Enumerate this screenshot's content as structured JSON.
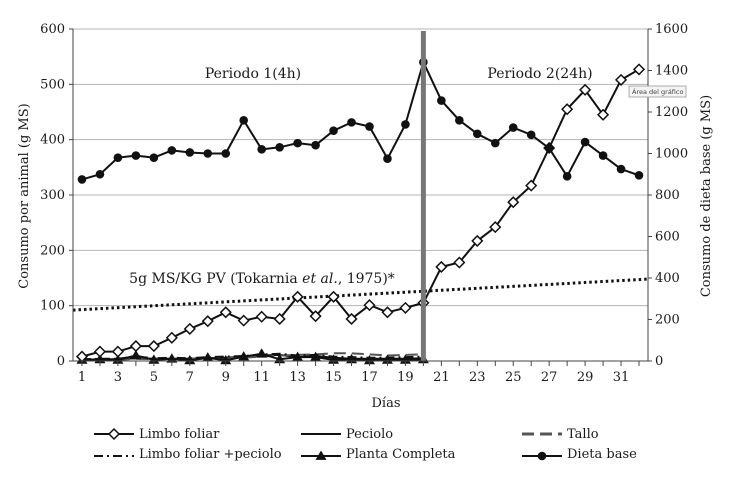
{
  "chart_data": {
    "type": "line",
    "xlabel": "Días",
    "ylabel_left": "Consumo por animal (g MS)",
    "ylabel_right": "Consumo de dieta base (g MS)",
    "xlim": [
      0.5,
      32.5
    ],
    "ylim_left": [
      0,
      600
    ],
    "ylim_right": [
      0,
      1600
    ],
    "x_tick_labels": [
      "1",
      "3",
      "5",
      "7",
      "9",
      "11",
      "13",
      "15",
      "17",
      "19",
      "21",
      "23",
      "25",
      "27",
      "29",
      "31"
    ],
    "y_left_tick_labels": [
      "0",
      "100",
      "200",
      "300",
      "400",
      "500",
      "600"
    ],
    "y_right_tick_labels": [
      "0",
      "200",
      "400",
      "600",
      "800",
      "1000",
      "1200",
      "1400",
      "1600"
    ],
    "period_divider_x": 20,
    "annotations": {
      "period1": "Periodo 1(4h)",
      "period2": "Periodo 2(24h)",
      "ref_prefix": "5g MS/KG PV (Tokarnia ",
      "ref_italic": "et al.",
      "ref_suffix": ", 1975)*"
    },
    "tooltip": "Área del gráfico",
    "series": [
      {
        "name": "Limbo foliar",
        "axis": "left",
        "marker": "diamond",
        "line": "solid",
        "x": [
          1,
          2,
          3,
          4,
          5,
          6,
          7,
          8,
          9,
          10,
          11,
          12,
          13,
          14,
          15,
          16,
          17,
          18,
          19,
          20,
          21,
          22,
          23,
          24,
          25,
          26,
          27,
          28,
          29,
          30,
          31,
          32
        ],
        "values": [
          8,
          17,
          17,
          27,
          27,
          42,
          58,
          72,
          88,
          73,
          80,
          76,
          116,
          81,
          116,
          76,
          101,
          88,
          96,
          105,
          170,
          178,
          217,
          242,
          287,
          317,
          385,
          455,
          490,
          445,
          508,
          527
        ]
      },
      {
        "name": "Peciolo",
        "axis": "left",
        "marker": "none",
        "line": "solid",
        "x": [
          1,
          2,
          3,
          4,
          5,
          6,
          7,
          8,
          9,
          10,
          11,
          12,
          13,
          14,
          15,
          16,
          17,
          18,
          19,
          20
        ],
        "values": [
          2,
          3,
          3,
          5,
          4,
          4,
          4,
          5,
          6,
          8,
          10,
          11,
          7,
          9,
          6,
          4,
          4,
          4,
          4,
          5
        ]
      },
      {
        "name": "Tallo",
        "axis": "left",
        "marker": "none",
        "line": "dashed",
        "x": [
          1,
          2,
          3,
          4,
          5,
          6,
          7,
          8,
          9,
          10,
          11,
          12,
          13,
          14,
          15,
          16,
          17,
          18,
          19,
          20
        ],
        "values": [
          2,
          2,
          2,
          4,
          3,
          3,
          4,
          4,
          5,
          6,
          8,
          10,
          11,
          12,
          14,
          14,
          12,
          10,
          11,
          12
        ]
      },
      {
        "name": "Limbo foliar +peciolo",
        "axis": "left",
        "marker": "none",
        "line": "dashdot",
        "x": [
          1,
          2,
          3,
          4,
          5,
          6,
          7,
          8,
          9,
          10,
          11,
          12,
          13,
          14,
          15,
          16,
          17,
          18,
          19,
          20
        ],
        "values": [
          3,
          4,
          4,
          8,
          5,
          6,
          5,
          7,
          8,
          9,
          12,
          13,
          10,
          11,
          8,
          7,
          6,
          6,
          7,
          8
        ]
      },
      {
        "name": "Planta Completa",
        "axis": "left",
        "marker": "triangle",
        "line": "solid",
        "x": [
          1,
          2,
          3,
          4,
          5,
          6,
          7,
          8,
          9,
          10,
          11,
          12,
          13,
          14,
          15,
          16,
          17,
          18,
          19,
          20
        ],
        "values": [
          2,
          3,
          2,
          10,
          2,
          4,
          1,
          6,
          1,
          8,
          13,
          3,
          7,
          7,
          2,
          3,
          1,
          2,
          2,
          3
        ]
      },
      {
        "name": "Dieta base",
        "axis": "right",
        "marker": "circle",
        "line": "solid",
        "x": [
          1,
          2,
          3,
          4,
          5,
          6,
          7,
          8,
          9,
          10,
          11,
          12,
          13,
          14,
          15,
          16,
          17,
          18,
          19,
          20,
          21,
          22,
          23,
          24,
          25,
          26,
          27,
          28,
          29,
          30,
          31,
          32
        ],
        "values": [
          875,
          900,
          980,
          990,
          980,
          1015,
          1005,
          1000,
          1000,
          1160,
          1020,
          1030,
          1050,
          1040,
          1110,
          1150,
          1130,
          975,
          1140,
          1440,
          1255,
          1160,
          1095,
          1050,
          1125,
          1090,
          1025,
          890,
          1055,
          990,
          925,
          895
        ]
      },
      {
        "name": "5g MS/KG PV (Tokarnia et al., 1975)*",
        "axis": "left",
        "marker": "none",
        "line": "dotted",
        "x": [
          0.5,
          32.5
        ],
        "values": [
          92,
          148
        ]
      }
    ],
    "legend": [
      {
        "label": "Limbo foliar",
        "style": "diamond-solid"
      },
      {
        "label": "Peciolo",
        "style": "solid"
      },
      {
        "label": "Tallo",
        "style": "dashed"
      },
      {
        "label": "Limbo foliar +peciolo",
        "style": "dashdot"
      },
      {
        "label": "Planta Completa",
        "style": "triangle-solid"
      },
      {
        "label": "Dieta base",
        "style": "circle-solid"
      }
    ]
  }
}
